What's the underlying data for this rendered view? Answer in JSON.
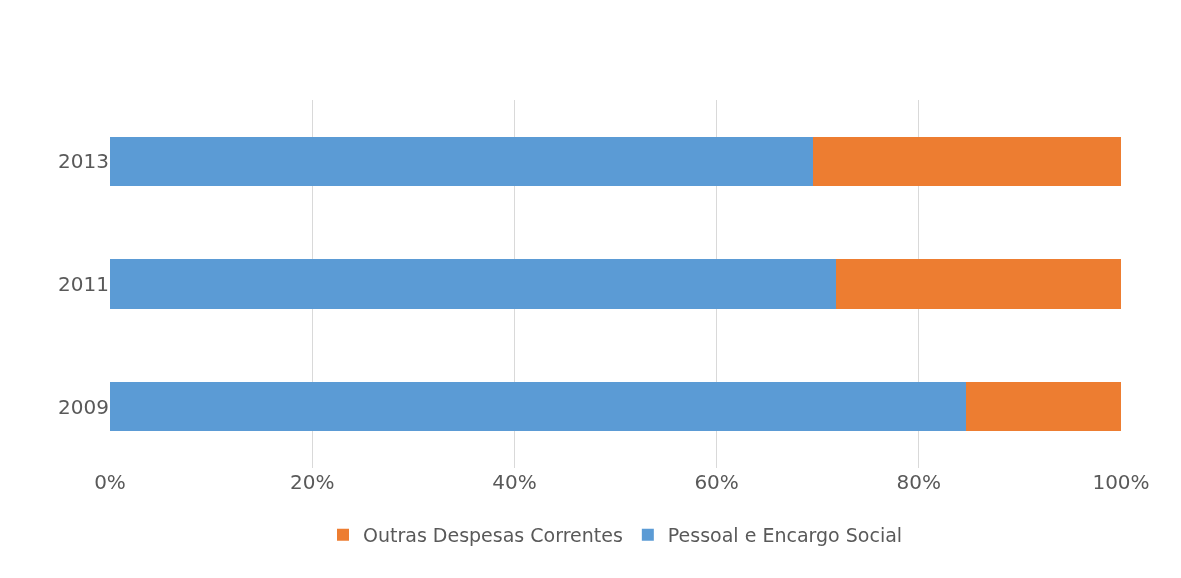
{
  "chart_data": {
    "type": "bar",
    "orientation": "horizontal",
    "stacked": true,
    "categories": [
      "2013",
      "2011",
      "2009"
    ],
    "series": [
      {
        "name": "Pessoal e Encargo Social",
        "color": "#5b9bd5",
        "values": [
          69.5,
          71.8,
          84.7
        ]
      },
      {
        "name": "Outras Despesas Correntes",
        "color": "#ed7d31",
        "values": [
          30.5,
          28.2,
          15.3
        ]
      }
    ],
    "xlim": [
      0,
      100
    ],
    "xticks": [
      {
        "value": 0,
        "label": "0%"
      },
      {
        "value": 20,
        "label": "20%"
      },
      {
        "value": 40,
        "label": "40%"
      },
      {
        "value": 60,
        "label": "60%"
      },
      {
        "value": 80,
        "label": "80%"
      },
      {
        "value": 100,
        "label": "100%"
      }
    ],
    "grid": "x",
    "legend": "bottom"
  }
}
